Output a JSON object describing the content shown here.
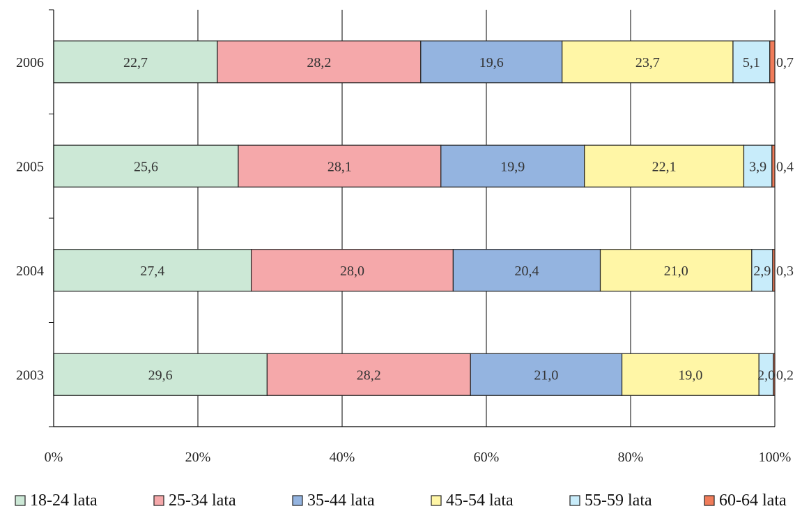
{
  "chart_data": {
    "type": "bar",
    "orientation": "horizontal",
    "stacked": "percent",
    "categories": [
      "2006",
      "2005",
      "2004",
      "2003"
    ],
    "series": [
      {
        "name": "18-24 lata",
        "color": "#cce8d6",
        "values": [
          22.7,
          25.6,
          27.4,
          29.6
        ],
        "labels": [
          "22,7",
          "25,6",
          "27,4",
          "29,6"
        ]
      },
      {
        "name": "25-34 lata",
        "color": "#f5a8aa",
        "values": [
          28.2,
          28.1,
          28.0,
          28.2
        ],
        "labels": [
          "28,2",
          "28,1",
          "28,0",
          "28,2"
        ]
      },
      {
        "name": "35-44 lata",
        "color": "#94b4e0",
        "values": [
          19.6,
          19.9,
          20.4,
          21.0
        ],
        "labels": [
          "19,6",
          "19,9",
          "20,4",
          "21,0"
        ]
      },
      {
        "name": "45-54 lata",
        "color": "#fff6a6",
        "values": [
          23.7,
          22.1,
          21.0,
          19.0
        ],
        "labels": [
          "23,7",
          "22,1",
          "21,0",
          "19,0"
        ]
      },
      {
        "name": "55-59 lata",
        "color": "#c8ecfa",
        "values": [
          5.1,
          3.9,
          2.9,
          2.0
        ],
        "labels": [
          "5,1",
          "3,9",
          "2,9",
          "2,0"
        ]
      },
      {
        "name": "60-64 lata",
        "color": "#f07c5a",
        "values": [
          0.7,
          0.4,
          0.3,
          0.2
        ],
        "labels": [
          "0,7",
          "0,4",
          "0,3",
          "0,2"
        ]
      }
    ],
    "x_ticks": [
      "0%",
      "20%",
      "40%",
      "60%",
      "80%",
      "100%"
    ],
    "xlim": [
      0,
      100
    ],
    "grid": "vertical",
    "legend": "bottom",
    "title": "",
    "xlabel": "",
    "ylabel": ""
  }
}
